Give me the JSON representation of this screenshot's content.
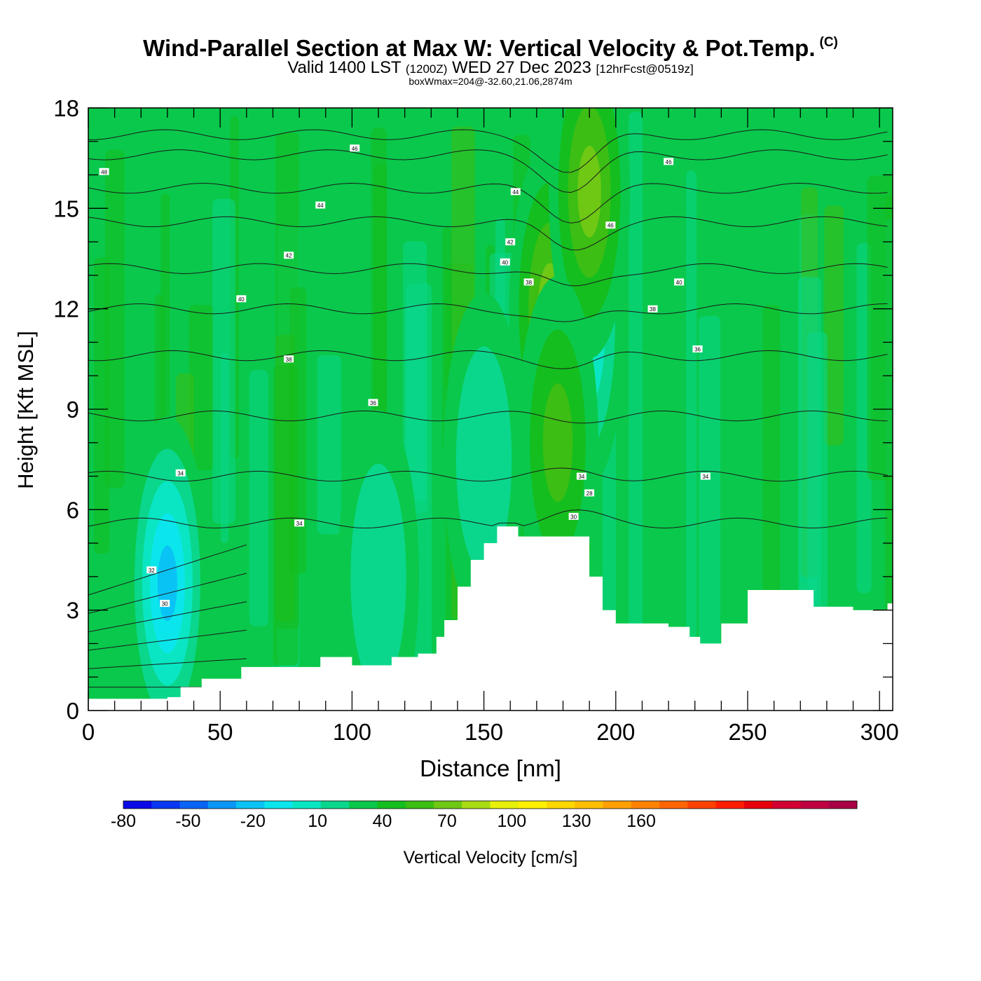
{
  "title": {
    "main": "Wind-Parallel Section at Max W: Vertical Velocity & Pot.Temp.",
    "copyright_mark": "(C)",
    "valid_prefix": "Valid 1400 LST",
    "valid_utc": "(1200Z)",
    "valid_date": "WED 27 Dec 2023",
    "forecast": "[12hrFcst@0519z]",
    "box_info": "boxWmax=204@-32.60,21.06,2874m"
  },
  "chart_data": {
    "type": "heatmap",
    "title": "Wind-Parallel Section at Max W: Vertical Velocity & Pot.Temp.",
    "xlabel": "Distance [nm]",
    "ylabel": "Height [Kft MSL]",
    "xlim": [
      0,
      305
    ],
    "ylim": [
      0,
      18
    ],
    "x_ticks": [
      0,
      50,
      100,
      150,
      200,
      250,
      300
    ],
    "y_ticks": [
      0,
      3,
      6,
      9,
      12,
      15,
      18
    ],
    "x_minor_step": 10,
    "y_minor_step": 1,
    "background_w_cms": 5,
    "terrain": {
      "x": [
        0,
        30,
        35,
        43,
        50,
        58,
        68,
        72,
        78,
        88,
        95,
        100,
        106,
        115,
        125,
        132,
        135,
        140,
        145,
        150,
        155,
        163,
        170,
        178,
        185,
        190,
        195,
        200,
        205,
        212,
        220,
        228,
        232,
        240,
        250,
        260,
        275,
        290,
        303,
        305
      ],
      "height_kft": [
        0.35,
        0.4,
        0.7,
        0.95,
        0.95,
        1.3,
        1.3,
        1.3,
        1.3,
        1.6,
        1.6,
        1.35,
        1.35,
        1.6,
        1.7,
        2.2,
        2.7,
        3.7,
        4.5,
        5.0,
        5.5,
        5.2,
        5.2,
        5.2,
        5.2,
        4.0,
        3.0,
        2.6,
        2.6,
        2.6,
        2.5,
        2.2,
        2.0,
        2.6,
        3.6,
        3.6,
        3.1,
        3.0,
        3.2,
        3.2
      ]
    },
    "w_features": [
      {
        "name": "updraft-core",
        "center_x": 183,
        "center_kft": 9.8,
        "w_cms": 170
      },
      {
        "name": "updraft-upper",
        "center_x": 182,
        "center_kft": 12.0,
        "w_cms": 80
      },
      {
        "name": "updraft-lower",
        "center_x": 183,
        "center_kft": 7.5,
        "w_cms": 90
      },
      {
        "name": "downdraft-upper",
        "center_x": 186,
        "center_kft": 14.5,
        "w_cms": -55
      },
      {
        "name": "downdraft-flank",
        "center_x": 188,
        "center_kft": 11.5,
        "w_cms": -25
      },
      {
        "name": "downdraft-low",
        "center_x": 30,
        "center_kft": 3.8,
        "w_cms": -35
      },
      {
        "name": "downdraft-broad",
        "center_x": 110,
        "center_kft": 4.0,
        "w_cms": -10
      },
      {
        "name": "downdraft-mid",
        "center_x": 150,
        "center_kft": 7.5,
        "w_cms": -10
      },
      {
        "name": "updraft-ridge",
        "center_x": 175,
        "center_kft": 12.0,
        "w_cms": 35
      },
      {
        "name": "updraft-lee",
        "center_x": 190,
        "center_kft": 15.5,
        "w_cms": 35
      },
      {
        "name": "updraft-lower-flank",
        "center_x": 178,
        "center_kft": 8.0,
        "w_cms": 20
      }
    ],
    "theta_levels": [
      {
        "value": "48",
        "base_kft": 17.2
      },
      {
        "value": "46",
        "base_kft": 16.6
      },
      {
        "value": "44",
        "base_kft": 15.6
      },
      {
        "value": "42",
        "base_kft": 14.6
      },
      {
        "value": "40",
        "base_kft": 13.2
      },
      {
        "value": "38",
        "base_kft": 12.0
      },
      {
        "value": "36",
        "base_kft": 10.6
      },
      {
        "value": "34",
        "base_kft": 8.8
      },
      {
        "value": "32",
        "base_kft": 7.0
      },
      {
        "value": "30",
        "base_kft": 5.6
      }
    ],
    "theta_labels": [
      {
        "text": "48",
        "x": 6,
        "kft": 16.1
      },
      {
        "text": "46",
        "x": 101,
        "kft": 16.8
      },
      {
        "text": "44",
        "x": 162,
        "kft": 15.5
      },
      {
        "text": "44",
        "x": 88,
        "kft": 15.1
      },
      {
        "text": "42",
        "x": 76,
        "kft": 13.6
      },
      {
        "text": "42",
        "x": 160,
        "kft": 14.0
      },
      {
        "text": "40",
        "x": 58,
        "kft": 12.3
      },
      {
        "text": "40",
        "x": 158,
        "kft": 13.4
      },
      {
        "text": "38",
        "x": 167,
        "kft": 12.8
      },
      {
        "text": "38",
        "x": 76,
        "kft": 10.5
      },
      {
        "text": "36",
        "x": 108,
        "kft": 9.2
      },
      {
        "text": "34",
        "x": 35,
        "kft": 7.1
      },
      {
        "text": "34",
        "x": 187,
        "kft": 7.0
      },
      {
        "text": "34",
        "x": 80,
        "kft": 5.6
      },
      {
        "text": "32",
        "x": 24,
        "kft": 4.2
      },
      {
        "text": "30",
        "x": 29,
        "kft": 3.2
      },
      {
        "text": "46",
        "x": 220,
        "kft": 16.4
      },
      {
        "text": "46",
        "x": 198,
        "kft": 14.5
      },
      {
        "text": "40",
        "x": 224,
        "kft": 12.8
      },
      {
        "text": "38",
        "x": 214,
        "kft": 12.0
      },
      {
        "text": "36",
        "x": 231,
        "kft": 10.8
      },
      {
        "text": "34",
        "x": 234,
        "kft": 7.0
      },
      {
        "text": "28",
        "x": 190,
        "kft": 6.5
      },
      {
        "text": "30",
        "x": 184,
        "kft": 5.8
      }
    ],
    "colorbar": {
      "label": "Vertical Velocity [cm/s]",
      "min": -80,
      "max": 180,
      "step": 10,
      "tick_labels": [
        "-80",
        "-50",
        "-20",
        "10",
        "40",
        "70",
        "100",
        "130",
        "160"
      ],
      "colors": [
        "#0a0ae6",
        "#0a37f0",
        "#0a64f5",
        "#0a96f5",
        "#0ac3f5",
        "#0ae6eb",
        "#0ae6c3",
        "#0ad78c",
        "#0ac84b",
        "#14be1e",
        "#3cbe14",
        "#6ec814",
        "#aadc14",
        "#e6f00a",
        "#fff000",
        "#ffd700",
        "#ffbe00",
        "#ffa000",
        "#ff8200",
        "#ff6400",
        "#ff4100",
        "#ff1e00",
        "#e6000a",
        "#d20032",
        "#be0041",
        "#aa0046"
      ]
    }
  }
}
